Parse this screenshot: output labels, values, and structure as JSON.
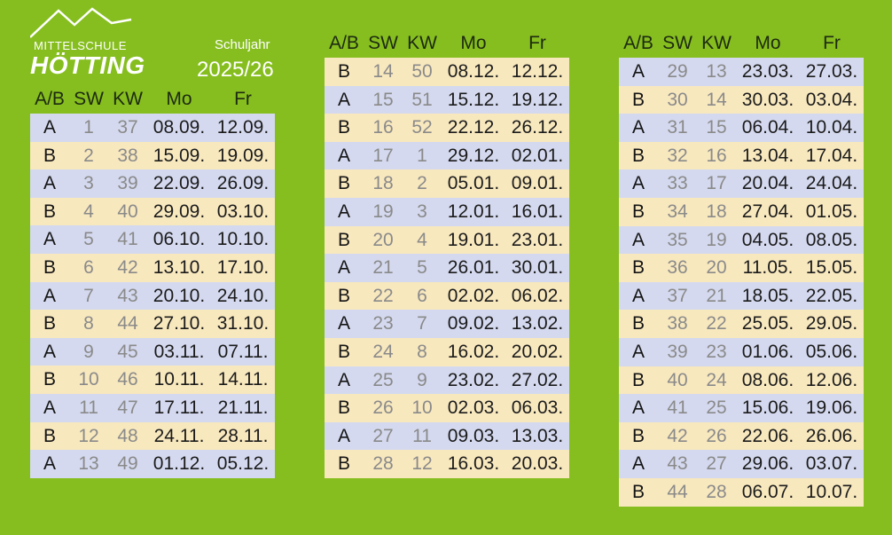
{
  "school": {
    "line1": "MITTELSCHULE",
    "line2": "HÖTTING"
  },
  "schuljahr_label": "Schuljahr",
  "year": "2025/26",
  "headers": {
    "ab": "A/B",
    "sw": "SW",
    "kw": "KW",
    "mo": "Mo",
    "fr": "Fr"
  },
  "columns": [
    {
      "rows": [
        {
          "ab": "A",
          "sw": "1",
          "kw": "37",
          "mo": "08.09.",
          "fr": "12.09."
        },
        {
          "ab": "B",
          "sw": "2",
          "kw": "38",
          "mo": "15.09.",
          "fr": "19.09."
        },
        {
          "ab": "A",
          "sw": "3",
          "kw": "39",
          "mo": "22.09.",
          "fr": "26.09."
        },
        {
          "ab": "B",
          "sw": "4",
          "kw": "40",
          "mo": "29.09.",
          "fr": "03.10."
        },
        {
          "ab": "A",
          "sw": "5",
          "kw": "41",
          "mo": "06.10.",
          "fr": "10.10."
        },
        {
          "ab": "B",
          "sw": "6",
          "kw": "42",
          "mo": "13.10.",
          "fr": "17.10."
        },
        {
          "ab": "A",
          "sw": "7",
          "kw": "43",
          "mo": "20.10.",
          "fr": "24.10."
        },
        {
          "ab": "B",
          "sw": "8",
          "kw": "44",
          "mo": "27.10.",
          "fr": "31.10."
        },
        {
          "ab": "A",
          "sw": "9",
          "kw": "45",
          "mo": "03.11.",
          "fr": "07.11."
        },
        {
          "ab": "B",
          "sw": "10",
          "kw": "46",
          "mo": "10.11.",
          "fr": "14.11."
        },
        {
          "ab": "A",
          "sw": "11",
          "kw": "47",
          "mo": "17.11.",
          "fr": "21.11."
        },
        {
          "ab": "B",
          "sw": "12",
          "kw": "48",
          "mo": "24.11.",
          "fr": "28.11."
        },
        {
          "ab": "A",
          "sw": "13",
          "kw": "49",
          "mo": "01.12.",
          "fr": "05.12."
        }
      ]
    },
    {
      "rows": [
        {
          "ab": "B",
          "sw": "14",
          "kw": "50",
          "mo": "08.12.",
          "fr": "12.12."
        },
        {
          "ab": "A",
          "sw": "15",
          "kw": "51",
          "mo": "15.12.",
          "fr": "19.12."
        },
        {
          "ab": "B",
          "sw": "16",
          "kw": "52",
          "mo": "22.12.",
          "fr": "26.12."
        },
        {
          "ab": "A",
          "sw": "17",
          "kw": "1",
          "mo": "29.12.",
          "fr": "02.01."
        },
        {
          "ab": "B",
          "sw": "18",
          "kw": "2",
          "mo": "05.01.",
          "fr": "09.01."
        },
        {
          "ab": "A",
          "sw": "19",
          "kw": "3",
          "mo": "12.01.",
          "fr": "16.01."
        },
        {
          "ab": "B",
          "sw": "20",
          "kw": "4",
          "mo": "19.01.",
          "fr": "23.01."
        },
        {
          "ab": "A",
          "sw": "21",
          "kw": "5",
          "mo": "26.01.",
          "fr": "30.01."
        },
        {
          "ab": "B",
          "sw": "22",
          "kw": "6",
          "mo": "02.02.",
          "fr": "06.02."
        },
        {
          "ab": "A",
          "sw": "23",
          "kw": "7",
          "mo": "09.02.",
          "fr": "13.02."
        },
        {
          "ab": "B",
          "sw": "24",
          "kw": "8",
          "mo": "16.02.",
          "fr": "20.02."
        },
        {
          "ab": "A",
          "sw": "25",
          "kw": "9",
          "mo": "23.02.",
          "fr": "27.02."
        },
        {
          "ab": "B",
          "sw": "26",
          "kw": "10",
          "mo": "02.03.",
          "fr": "06.03."
        },
        {
          "ab": "A",
          "sw": "27",
          "kw": "11",
          "mo": "09.03.",
          "fr": "13.03."
        },
        {
          "ab": "B",
          "sw": "28",
          "kw": "12",
          "mo": "16.03.",
          "fr": "20.03."
        }
      ]
    },
    {
      "rows": [
        {
          "ab": "A",
          "sw": "29",
          "kw": "13",
          "mo": "23.03.",
          "fr": "27.03."
        },
        {
          "ab": "B",
          "sw": "30",
          "kw": "14",
          "mo": "30.03.",
          "fr": "03.04."
        },
        {
          "ab": "A",
          "sw": "31",
          "kw": "15",
          "mo": "06.04.",
          "fr": "10.04."
        },
        {
          "ab": "B",
          "sw": "32",
          "kw": "16",
          "mo": "13.04.",
          "fr": "17.04."
        },
        {
          "ab": "A",
          "sw": "33",
          "kw": "17",
          "mo": "20.04.",
          "fr": "24.04."
        },
        {
          "ab": "B",
          "sw": "34",
          "kw": "18",
          "mo": "27.04.",
          "fr": "01.05."
        },
        {
          "ab": "A",
          "sw": "35",
          "kw": "19",
          "mo": "04.05.",
          "fr": "08.05."
        },
        {
          "ab": "B",
          "sw": "36",
          "kw": "20",
          "mo": "11.05.",
          "fr": "15.05."
        },
        {
          "ab": "A",
          "sw": "37",
          "kw": "21",
          "mo": "18.05.",
          "fr": "22.05."
        },
        {
          "ab": "B",
          "sw": "38",
          "kw": "22",
          "mo": "25.05.",
          "fr": "29.05."
        },
        {
          "ab": "A",
          "sw": "39",
          "kw": "23",
          "mo": "01.06.",
          "fr": "05.06."
        },
        {
          "ab": "B",
          "sw": "40",
          "kw": "24",
          "mo": "08.06.",
          "fr": "12.06."
        },
        {
          "ab": "A",
          "sw": "41",
          "kw": "25",
          "mo": "15.06.",
          "fr": "19.06."
        },
        {
          "ab": "B",
          "sw": "42",
          "kw": "26",
          "mo": "22.06.",
          "fr": "26.06."
        },
        {
          "ab": "A",
          "sw": "43",
          "kw": "27",
          "mo": "29.06.",
          "fr": "03.07."
        },
        {
          "ab": "B",
          "sw": "44",
          "kw": "28",
          "mo": "06.07.",
          "fr": "10.07."
        }
      ]
    }
  ]
}
